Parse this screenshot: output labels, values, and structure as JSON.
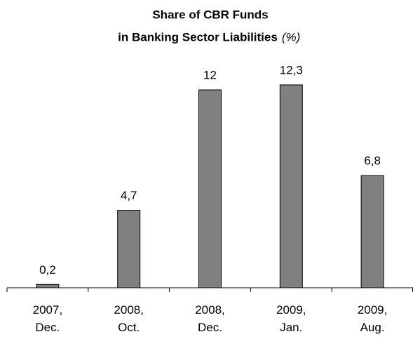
{
  "chart_data": {
    "type": "bar",
    "title": [
      "Share of CBR Funds",
      "in Banking Sector Liabilities"
    ],
    "unit": "(%)",
    "categories": [
      "2007, Dec.",
      "2008, Oct.",
      "2008, Dec.",
      "2009, Jan.",
      "2009, Aug."
    ],
    "values": [
      0.2,
      4.7,
      12,
      12.3,
      6.8
    ],
    "value_labels": [
      "0,2",
      "4,7",
      "12",
      "12,3",
      "6,8"
    ],
    "color": "#808080",
    "ylim": [
      0,
      14
    ]
  }
}
